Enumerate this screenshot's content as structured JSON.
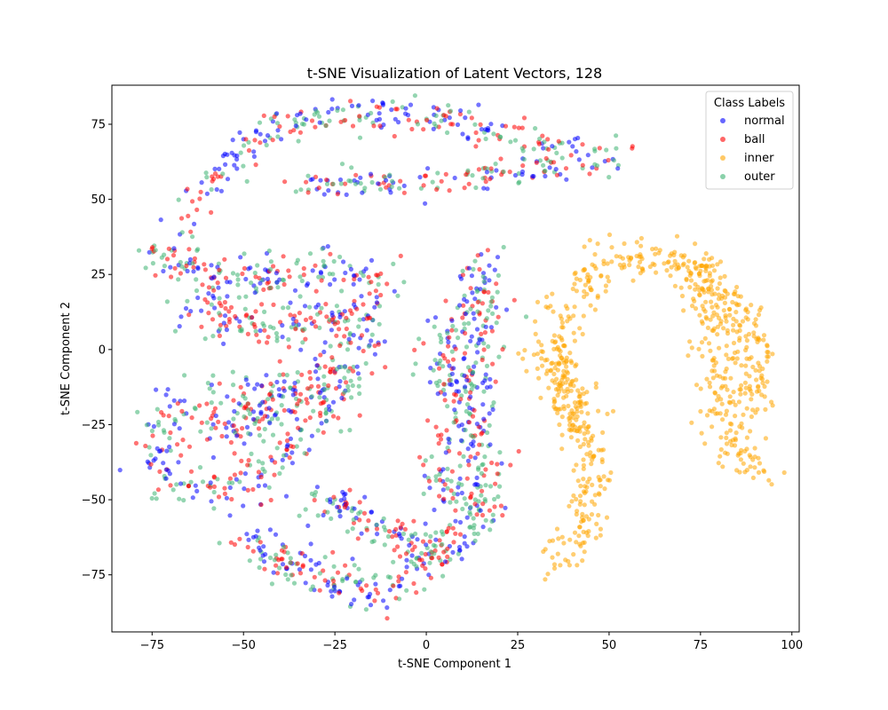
{
  "chart_data": {
    "type": "scatter",
    "title": "t-SNE Visualization of Latent Vectors, 128",
    "xlabel": "t-SNE Component 1",
    "ylabel": "t-SNE Component 2",
    "xlim": [
      -86,
      102
    ],
    "ylim": [
      -94,
      88
    ],
    "xticks": [
      -75,
      -50,
      -25,
      0,
      25,
      50,
      75,
      100
    ],
    "yticks": [
      -75,
      -50,
      -25,
      0,
      25,
      50,
      75
    ],
    "grid": false,
    "legend": {
      "title": "Class Labels",
      "placement": "top-right"
    },
    "series": [
      {
        "name": "normal",
        "color": "#0000ff",
        "opacity": 0.55
      },
      {
        "name": "ball",
        "color": "#ff0000",
        "opacity": 0.55
      },
      {
        "name": "inner",
        "color": "#ffa500",
        "opacity": 0.55
      },
      {
        "name": "outer",
        "color": "#3cb371",
        "opacity": 0.55
      }
    ],
    "clusters": [
      {
        "series": [
          "normal",
          "ball",
          "outer"
        ],
        "path": [
          [
            -65,
            38
          ],
          [
            -62,
            50
          ],
          [
            -55,
            62
          ],
          [
            -45,
            70
          ],
          [
            -35,
            75
          ],
          [
            -25,
            78
          ],
          [
            -15,
            79
          ],
          [
            -5,
            78
          ],
          [
            5,
            77
          ],
          [
            15,
            74
          ],
          [
            25,
            70
          ],
          [
            35,
            67
          ],
          [
            45,
            65
          ],
          [
            53,
            64
          ]
        ],
        "spread": 3,
        "count": 280
      },
      {
        "series": [
          "normal",
          "ball",
          "outer"
        ],
        "path": [
          [
            -35,
            54
          ],
          [
            -20,
            55
          ],
          [
            -5,
            55
          ],
          [
            10,
            57
          ],
          [
            25,
            59
          ],
          [
            38,
            60
          ]
        ],
        "spread": 2.5,
        "count": 130
      },
      {
        "series": [
          "normal",
          "ball",
          "outer"
        ],
        "path": [
          [
            -76,
            32
          ],
          [
            -70,
            30
          ],
          [
            -62,
            28
          ],
          [
            -55,
            20
          ],
          [
            -45,
            24
          ],
          [
            -35,
            26
          ],
          [
            -25,
            27
          ],
          [
            -15,
            24
          ],
          [
            -10,
            15
          ]
        ],
        "spread": 3.5,
        "count": 200
      },
      {
        "series": [
          "normal",
          "ball",
          "outer"
        ],
        "path": [
          [
            -65,
            15
          ],
          [
            -55,
            10
          ],
          [
            -45,
            8
          ],
          [
            -35,
            10
          ],
          [
            -25,
            12
          ],
          [
            -15,
            8
          ]
        ],
        "spread": 4,
        "count": 160
      },
      {
        "series": [
          "normal",
          "ball",
          "outer"
        ],
        "path": [
          [
            -18,
            5
          ],
          [
            -25,
            -5
          ],
          [
            -35,
            -12
          ],
          [
            -48,
            -15
          ],
          [
            -62,
            -18
          ],
          [
            -72,
            -25
          ],
          [
            -75,
            -35
          ],
          [
            -70,
            -45
          ],
          [
            -60,
            -48
          ],
          [
            -50,
            -45
          ],
          [
            -42,
            -38
          ],
          [
            -35,
            -30
          ],
          [
            -28,
            -22
          ],
          [
            -20,
            -15
          ]
        ],
        "spread": 4,
        "count": 320
      },
      {
        "series": [
          "normal",
          "ball",
          "outer"
        ],
        "path": [
          [
            -60,
            -28
          ],
          [
            -50,
            -25
          ],
          [
            -40,
            -20
          ],
          [
            -30,
            -15
          ],
          [
            -20,
            -8
          ]
        ],
        "spread": 3,
        "count": 120
      },
      {
        "series": [
          "normal",
          "ball",
          "outer"
        ],
        "path": [
          [
            18,
            30
          ],
          [
            14,
            22
          ],
          [
            10,
            15
          ],
          [
            6,
            8
          ],
          [
            4,
            0
          ],
          [
            3,
            -8
          ],
          [
            5,
            -15
          ],
          [
            6,
            -25
          ],
          [
            5,
            -35
          ],
          [
            6,
            -45
          ],
          [
            10,
            -52
          ],
          [
            14,
            -55
          ],
          [
            18,
            -50
          ],
          [
            15,
            -35
          ],
          [
            12,
            -20
          ],
          [
            14,
            -5
          ],
          [
            16,
            8
          ],
          [
            15,
            20
          ]
        ],
        "spread": 3.5,
        "count": 380
      },
      {
        "series": [
          "normal",
          "ball",
          "outer"
        ],
        "path": [
          [
            -52,
            -63
          ],
          [
            -44,
            -67
          ],
          [
            -35,
            -72
          ],
          [
            -25,
            -78
          ],
          [
            -15,
            -80
          ],
          [
            -5,
            -75
          ],
          [
            3,
            -68
          ],
          [
            10,
            -62
          ],
          [
            16,
            -58
          ]
        ],
        "spread": 3.5,
        "count": 230
      },
      {
        "series": [
          "normal",
          "ball",
          "outer"
        ],
        "path": [
          [
            -33,
            -50
          ],
          [
            -25,
            -52
          ],
          [
            -15,
            -58
          ],
          [
            -5,
            -62
          ],
          [
            3,
            -65
          ]
        ],
        "spread": 3,
        "count": 110
      },
      {
        "series": [
          "inner"
        ],
        "path": [
          [
            35,
            -73
          ],
          [
            40,
            -65
          ],
          [
            43,
            -55
          ],
          [
            44,
            -45
          ],
          [
            45,
            -35
          ],
          [
            44,
            -25
          ],
          [
            40,
            -15
          ],
          [
            37,
            -5
          ],
          [
            36,
            5
          ],
          [
            38,
            15
          ],
          [
            42,
            22
          ],
          [
            47,
            28
          ],
          [
            54,
            32
          ],
          [
            60,
            30
          ],
          [
            68,
            27
          ],
          [
            75,
            30
          ],
          [
            77,
            22
          ],
          [
            78,
            10
          ],
          [
            79,
            0
          ],
          [
            80,
            -10
          ],
          [
            79,
            -22
          ],
          [
            82,
            -30
          ],
          [
            88,
            -36
          ],
          [
            93,
            -42
          ]
        ],
        "spread": 3.5,
        "count": 520
      },
      {
        "series": [
          "inner"
        ],
        "path": [
          [
            28,
            -3
          ],
          [
            33,
            -2
          ],
          [
            37,
            -8
          ],
          [
            39,
            -20
          ],
          [
            42,
            -28
          ]
        ],
        "spread": 2.5,
        "count": 90
      },
      {
        "series": [
          "inner"
        ],
        "path": [
          [
            72,
            26
          ],
          [
            80,
            20
          ],
          [
            85,
            15
          ],
          [
            86,
            5
          ],
          [
            89,
            7
          ],
          [
            90,
            -10
          ],
          [
            86,
            -20
          ]
        ],
        "spread": 3,
        "count": 150
      }
    ]
  }
}
